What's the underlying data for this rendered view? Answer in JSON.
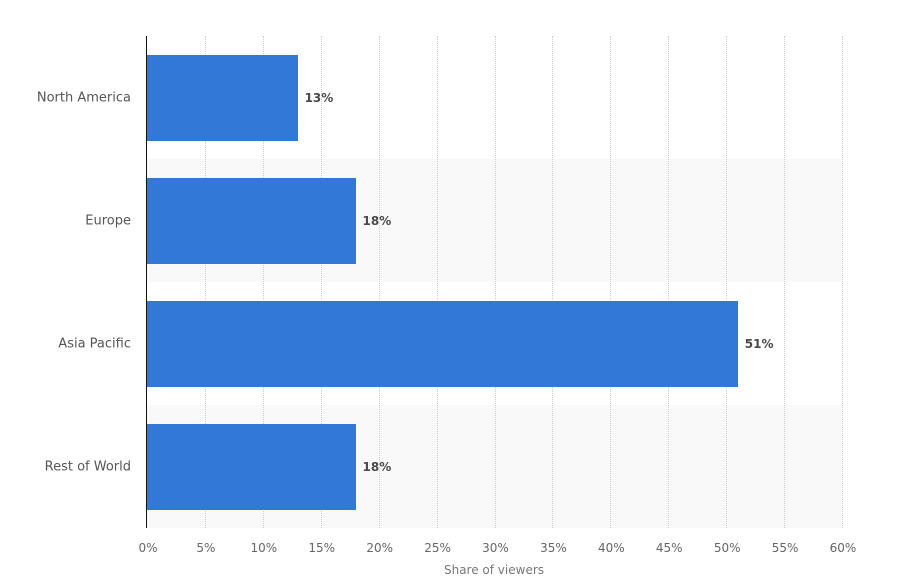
{
  "chart_data": {
    "type": "bar",
    "orientation": "horizontal",
    "title": "",
    "categories": [
      "North America",
      "Europe",
      "Asia Pacific",
      "Rest of World"
    ],
    "values": [
      13,
      18,
      51,
      18
    ],
    "value_labels": [
      "13%",
      "18%",
      "51%",
      "18%"
    ],
    "xlabel": "Share of viewers",
    "ylabel": "",
    "xlim": [
      0,
      60
    ],
    "x_ticks": [
      "0%",
      "5%",
      "10%",
      "15%",
      "20%",
      "25%",
      "30%",
      "35%",
      "40%",
      "45%",
      "50%",
      "55%",
      "60%"
    ],
    "grid": true,
    "legend": null,
    "bar_color": "#3279d7"
  }
}
